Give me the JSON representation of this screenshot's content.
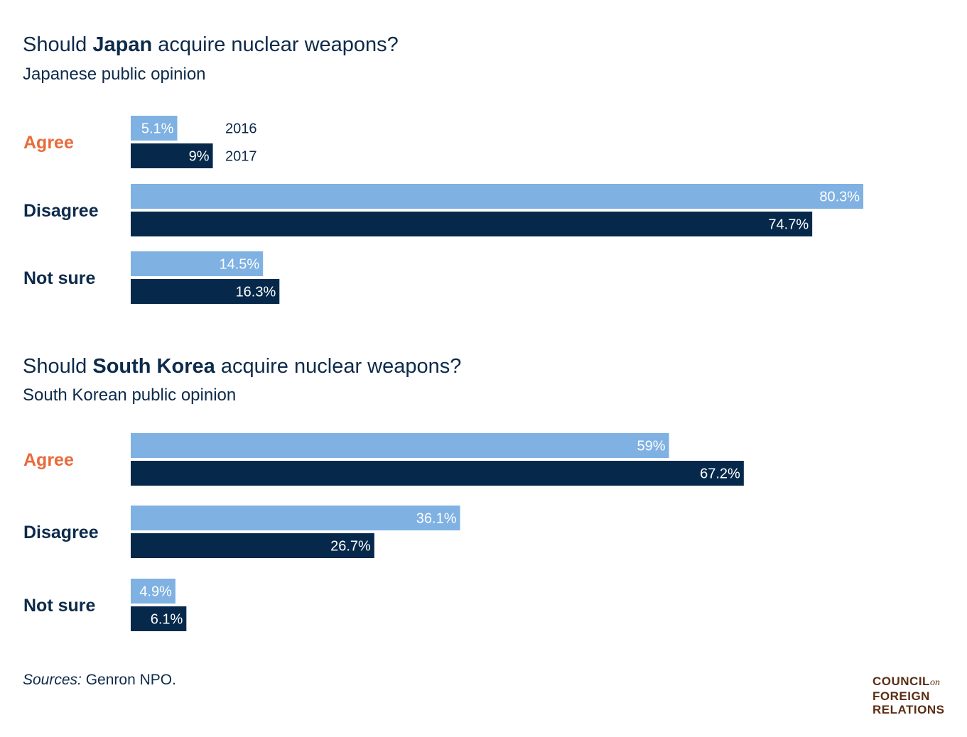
{
  "colors": {
    "y2016": "#7fb1e3",
    "y2017": "#06294b",
    "agree": "#ea6a3a",
    "text": "#0d2a4a",
    "logo": "#5a2d14"
  },
  "chart_data": [
    {
      "type": "bar",
      "title_pre": "Should ",
      "title_bold": "Japan",
      "title_post": " acquire nuclear weapons?",
      "subtitle": "Japanese public opinion",
      "categories": [
        "Agree",
        "Disagree",
        "Not sure"
      ],
      "series": [
        {
          "name": "2016",
          "values": [
            5.1,
            80.3,
            14.5
          ],
          "labels": [
            "5.1%",
            "80.3%",
            "14.5%"
          ]
        },
        {
          "name": "2017",
          "values": [
            9,
            74.7,
            16.3
          ],
          "labels": [
            "9%",
            "74.7%",
            "16.3%"
          ]
        }
      ],
      "orientation": "horizontal",
      "legend_position": "inline-right-of-first-category"
    },
    {
      "type": "bar",
      "title_pre": "Should ",
      "title_bold": "South Korea",
      "title_post": " acquire nuclear weapons?",
      "subtitle": "South Korean public opinion",
      "categories": [
        "Agree",
        "Disagree",
        "Not sure"
      ],
      "series": [
        {
          "name": "2016",
          "values": [
            59,
            36.1,
            4.9
          ],
          "labels": [
            "59%",
            "36.1%",
            "4.9%"
          ]
        },
        {
          "name": "2017",
          "values": [
            67.2,
            26.7,
            6.1
          ],
          "labels": [
            "67.2%",
            "26.7%",
            "6.1%"
          ]
        }
      ],
      "orientation": "horizontal"
    }
  ],
  "footer": {
    "sources_label": "Sources:",
    "sources_text": " Genron NPO."
  },
  "logo": {
    "line1": "COUNCIL",
    "line1_on": "on",
    "line2": "FOREIGN",
    "line3": "RELATIONS"
  }
}
